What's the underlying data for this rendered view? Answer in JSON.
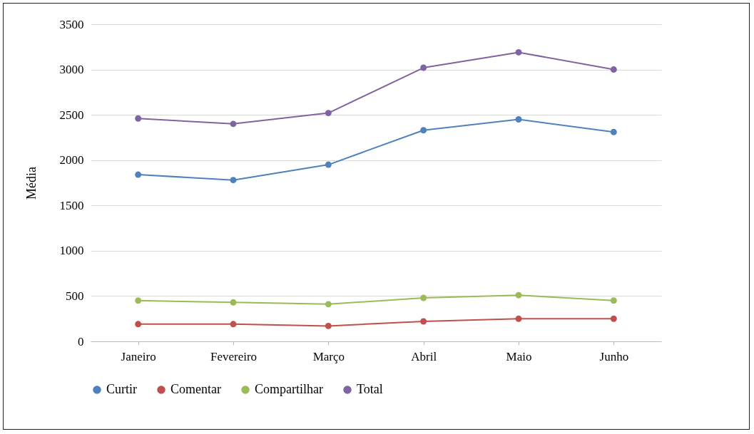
{
  "chart_data": {
    "type": "line",
    "ylabel": "Média",
    "categories": [
      "Janeiro",
      "Fevereiro",
      "Março",
      "Abril",
      "Maio",
      "Junho"
    ],
    "series": [
      {
        "name": "Curtir",
        "color": "#4f81bd",
        "values": [
          1840,
          1780,
          1950,
          2330,
          2450,
          2310
        ]
      },
      {
        "name": "Comentar",
        "color": "#c0504d",
        "values": [
          190,
          190,
          170,
          220,
          250,
          250
        ]
      },
      {
        "name": "Compartilhar",
        "color": "#9bbb59",
        "values": [
          450,
          430,
          410,
          480,
          510,
          450
        ]
      },
      {
        "name": "Total",
        "color": "#8064a2",
        "values": [
          2460,
          2400,
          2520,
          3020,
          3190,
          3000
        ]
      }
    ],
    "ylim": [
      0,
      3500
    ],
    "yticks": [
      0,
      500,
      1000,
      1500,
      2000,
      2500,
      3000,
      3500
    ],
    "grid": "y",
    "legend": "bottom",
    "marker": "circle",
    "line_style": "solid"
  }
}
